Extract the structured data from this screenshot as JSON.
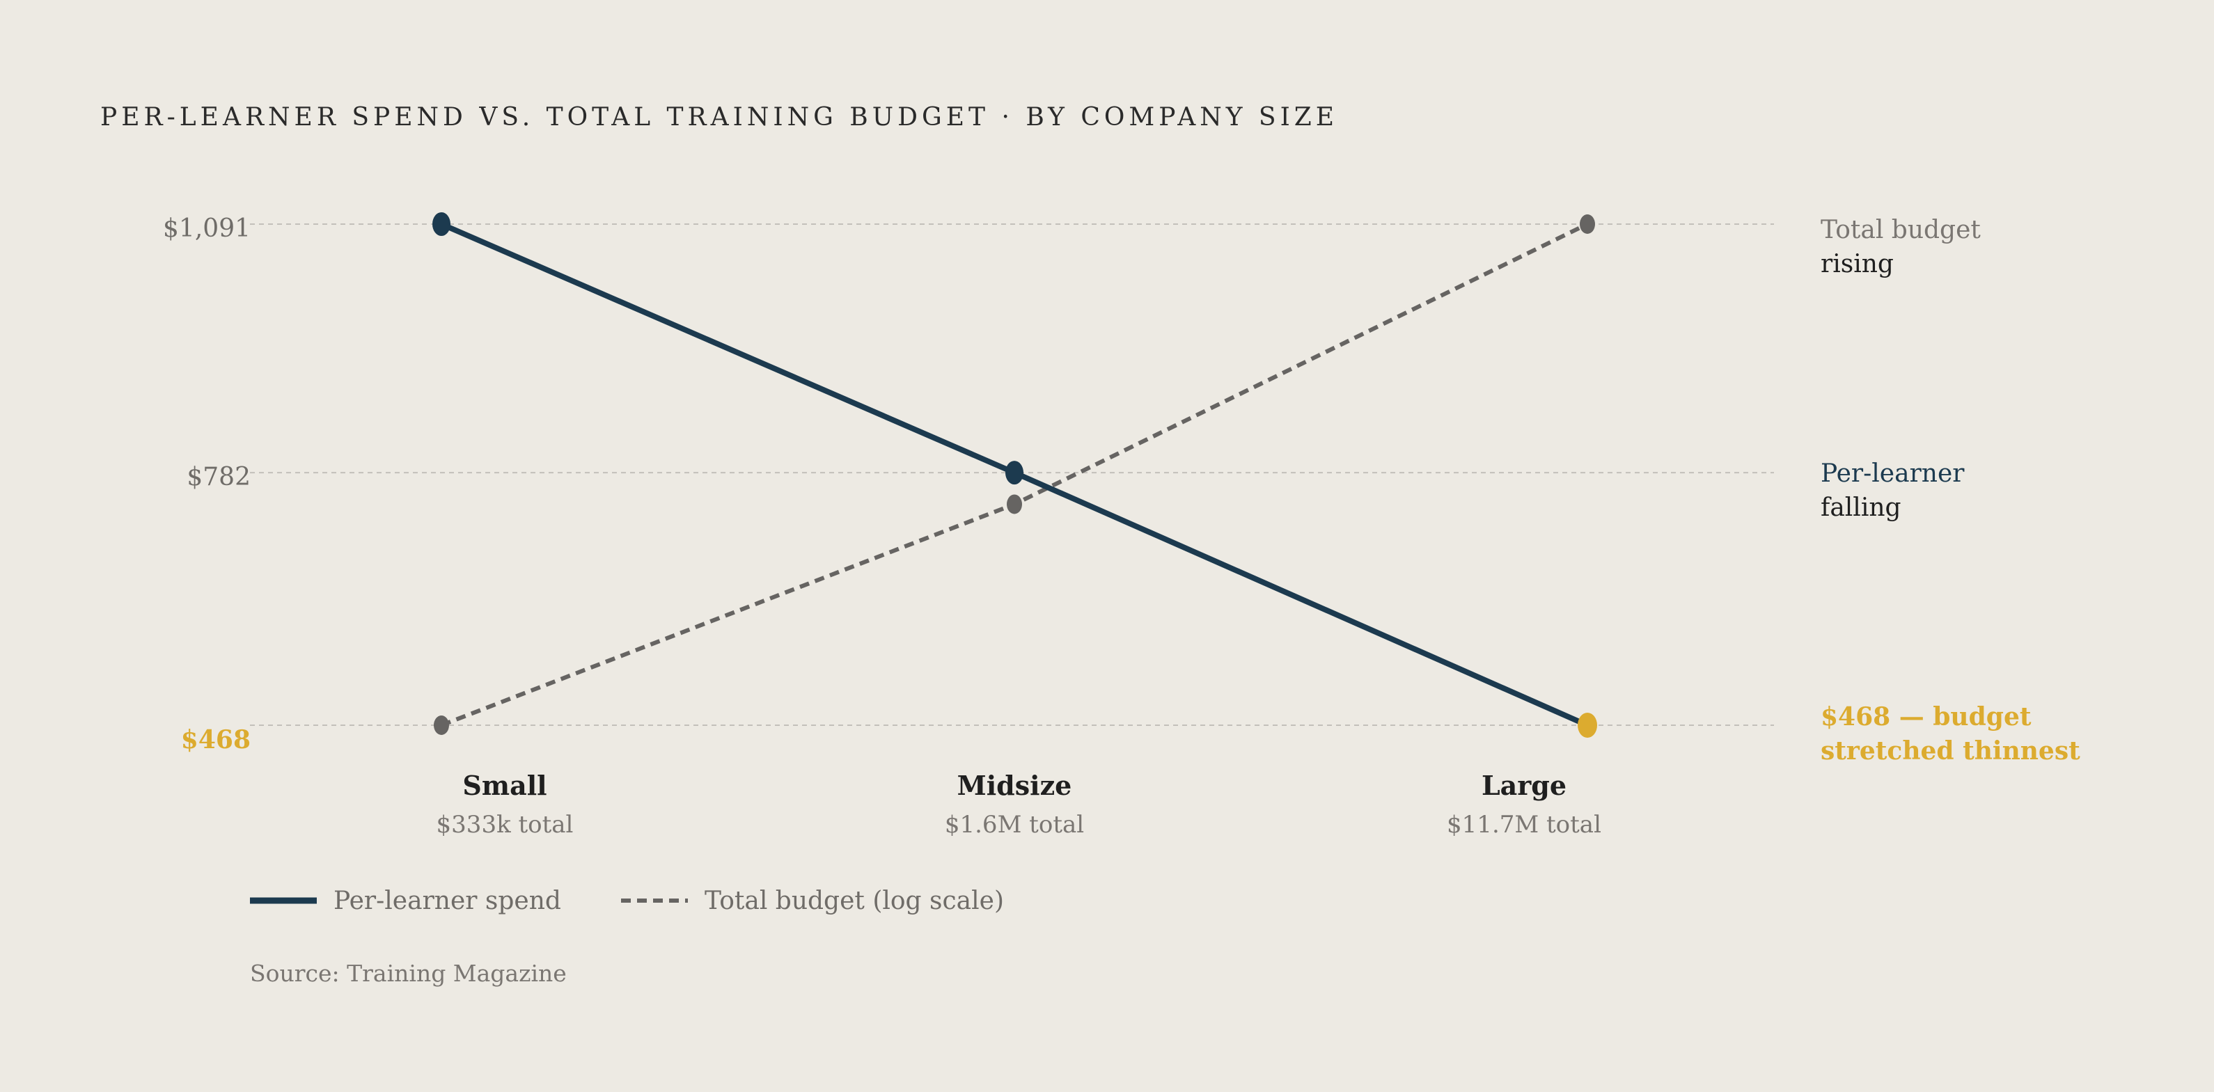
{
  "chart_data": {
    "type": "line",
    "title": "PER-LEARNER SPEND VS. TOTAL TRAINING BUDGET  ·  BY COMPANY SIZE",
    "categories": [
      "Small",
      "Midsize",
      "Large"
    ],
    "category_subtitles": [
      "$333k total",
      "$1.6M total",
      "$11.7M total"
    ],
    "y_ticks": [
      "$1,091",
      "$782",
      "$468"
    ],
    "series": [
      {
        "name": "Per-learner spend",
        "values": [
          1091,
          782,
          468
        ],
        "unit": "$",
        "style": "solid",
        "color": "#1c3a4f"
      },
      {
        "name": "Total budget (log scale)",
        "values": [
          333000,
          1600000,
          11700000
        ],
        "unit": "$",
        "scale": "log",
        "style": "dashed",
        "color": "#666462"
      }
    ],
    "highlight": {
      "category": "Large",
      "value": 468,
      "color": "#dcab2f"
    },
    "annotations": [
      {
        "lines": [
          "Total budget",
          "rising"
        ],
        "anchor_series": "Total budget (log scale)",
        "anchor_category": "Large"
      },
      {
        "lines": [
          "Per-learner",
          "falling"
        ],
        "anchor_series": "Per-learner spend",
        "anchor_category": "Midsize"
      },
      {
        "lines": [
          "$468 — budget",
          "stretched thinnest"
        ],
        "anchor_series": "Per-learner spend",
        "anchor_category": "Large",
        "highlight": true
      }
    ],
    "legend": [
      {
        "label": "Per-learner spend",
        "style": "solid"
      },
      {
        "label": "Total budget (log scale)",
        "style": "dashed"
      }
    ],
    "source": "Source: Training Magazine",
    "grid": true,
    "legend_position": "bottom-left",
    "colors": {
      "background": "#edeae3",
      "per_learner": "#1c3a4f",
      "total_budget": "#666462",
      "highlight": "#dcab2f",
      "grid": "#c3c0ba",
      "annotation_muted": "#7a7672"
    }
  }
}
